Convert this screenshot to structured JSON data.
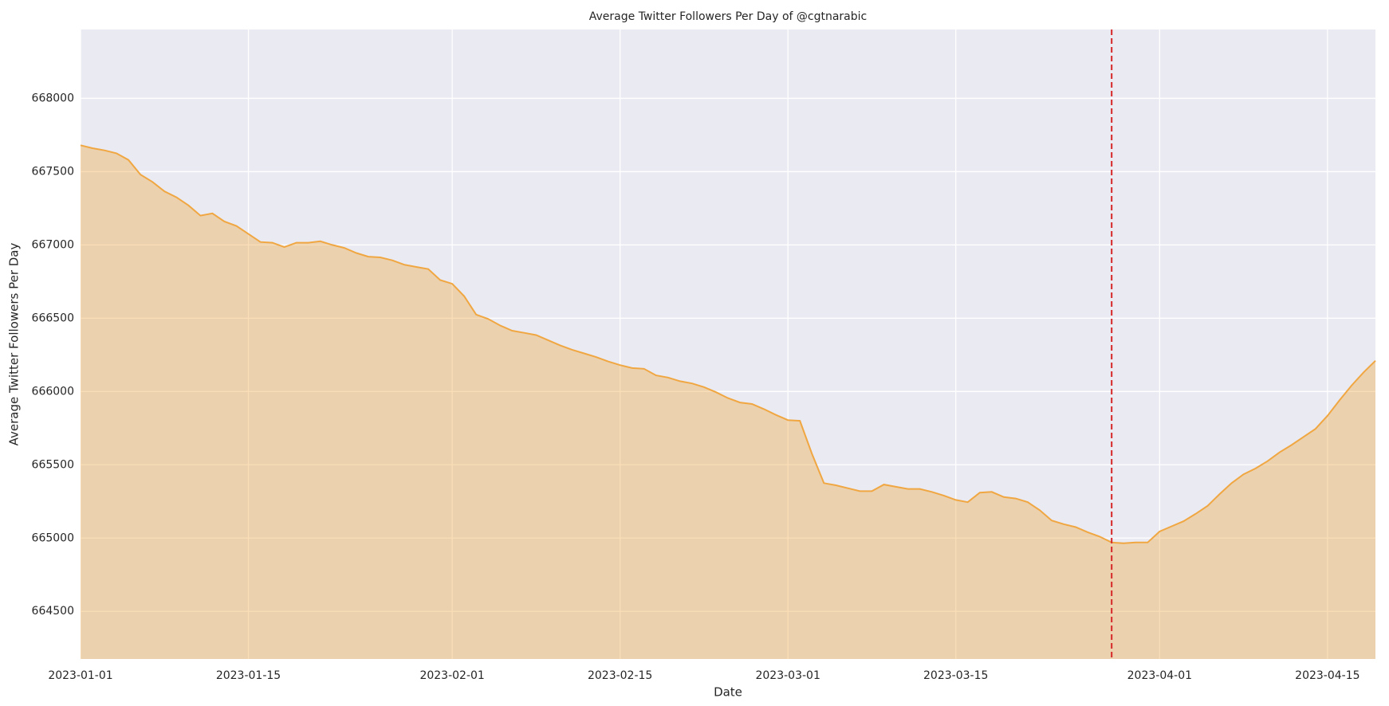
{
  "chart_data": {
    "type": "area",
    "title": "Average Twitter Followers Per Day of @cgtnarabic",
    "xlabel": "Date",
    "ylabel": "Average Twitter Followers Per Day",
    "x": [
      "2023-01-01",
      "2023-01-02",
      "2023-01-03",
      "2023-01-04",
      "2023-01-05",
      "2023-01-06",
      "2023-01-07",
      "2023-01-08",
      "2023-01-09",
      "2023-01-10",
      "2023-01-11",
      "2023-01-12",
      "2023-01-13",
      "2023-01-14",
      "2023-01-15",
      "2023-01-16",
      "2023-01-17",
      "2023-01-18",
      "2023-01-19",
      "2023-01-20",
      "2023-01-21",
      "2023-01-22",
      "2023-01-23",
      "2023-01-24",
      "2023-01-25",
      "2023-01-26",
      "2023-01-27",
      "2023-01-28",
      "2023-01-29",
      "2023-01-30",
      "2023-01-31",
      "2023-02-01",
      "2023-02-02",
      "2023-02-03",
      "2023-02-04",
      "2023-02-05",
      "2023-02-06",
      "2023-02-07",
      "2023-02-08",
      "2023-02-09",
      "2023-02-10",
      "2023-02-11",
      "2023-02-12",
      "2023-02-13",
      "2023-02-14",
      "2023-02-15",
      "2023-02-16",
      "2023-02-17",
      "2023-02-18",
      "2023-02-19",
      "2023-02-20",
      "2023-02-21",
      "2023-02-22",
      "2023-02-23",
      "2023-02-24",
      "2023-02-25",
      "2023-02-26",
      "2023-02-27",
      "2023-02-28",
      "2023-03-01",
      "2023-03-02",
      "2023-03-03",
      "2023-03-04",
      "2023-03-05",
      "2023-03-06",
      "2023-03-07",
      "2023-03-08",
      "2023-03-09",
      "2023-03-10",
      "2023-03-11",
      "2023-03-12",
      "2023-03-13",
      "2023-03-14",
      "2023-03-15",
      "2023-03-16",
      "2023-03-17",
      "2023-03-18",
      "2023-03-19",
      "2023-03-20",
      "2023-03-21",
      "2023-03-22",
      "2023-03-23",
      "2023-03-24",
      "2023-03-25",
      "2023-03-26",
      "2023-03-27",
      "2023-03-28",
      "2023-03-29",
      "2023-03-30",
      "2023-03-31",
      "2023-04-01",
      "2023-04-02",
      "2023-04-03",
      "2023-04-04",
      "2023-04-05",
      "2023-04-06",
      "2023-04-07",
      "2023-04-08",
      "2023-04-09",
      "2023-04-10",
      "2023-04-11",
      "2023-04-12",
      "2023-04-13",
      "2023-04-14",
      "2023-04-15",
      "2023-04-16",
      "2023-04-17",
      "2023-04-18",
      "2023-04-19"
    ],
    "values": [
      667680,
      667660,
      667645,
      667625,
      667580,
      667480,
      667430,
      667365,
      667325,
      667270,
      667200,
      667215,
      667160,
      667130,
      667075,
      667020,
      667015,
      666985,
      667015,
      667015,
      667025,
      667000,
      666980,
      666945,
      666920,
      666915,
      666895,
      666865,
      666850,
      666835,
      666760,
      666735,
      666650,
      666525,
      666495,
      666450,
      666415,
      666400,
      666385,
      666350,
      666315,
      666285,
      666260,
      666235,
      666205,
      666180,
      666160,
      666155,
      666110,
      666095,
      666070,
      666055,
      666030,
      665995,
      665955,
      665925,
      665915,
      665880,
      665840,
      665805,
      665800,
      665575,
      665375,
      665360,
      665340,
      665320,
      665320,
      665365,
      665350,
      665335,
      665335,
      665315,
      665290,
      665260,
      665245,
      665310,
      665315,
      665280,
      665270,
      665245,
      665190,
      665120,
      665095,
      665075,
      665040,
      665010,
      664970,
      664965,
      664970,
      664970,
      665045,
      665080,
      665115,
      665165,
      665220,
      665300,
      665375,
      665435,
      665475,
      665525,
      665585,
      665635,
      665690,
      665745,
      665835,
      665940,
      666040,
      666130,
      666210
    ],
    "color": "#f0a742",
    "xlim": [
      "2023-01-01",
      "2023-04-19"
    ],
    "xticks": [
      "2023-01-01",
      "2023-01-15",
      "2023-02-01",
      "2023-02-15",
      "2023-03-01",
      "2023-03-15",
      "2023-04-01",
      "2023-04-15"
    ],
    "ylim": [
      664175,
      668470
    ],
    "yticks": [
      664500,
      665000,
      665500,
      666000,
      666500,
      667000,
      667500,
      668000
    ],
    "grid": true,
    "vline": {
      "x": "2023-03-28",
      "color": "#d62728"
    }
  }
}
